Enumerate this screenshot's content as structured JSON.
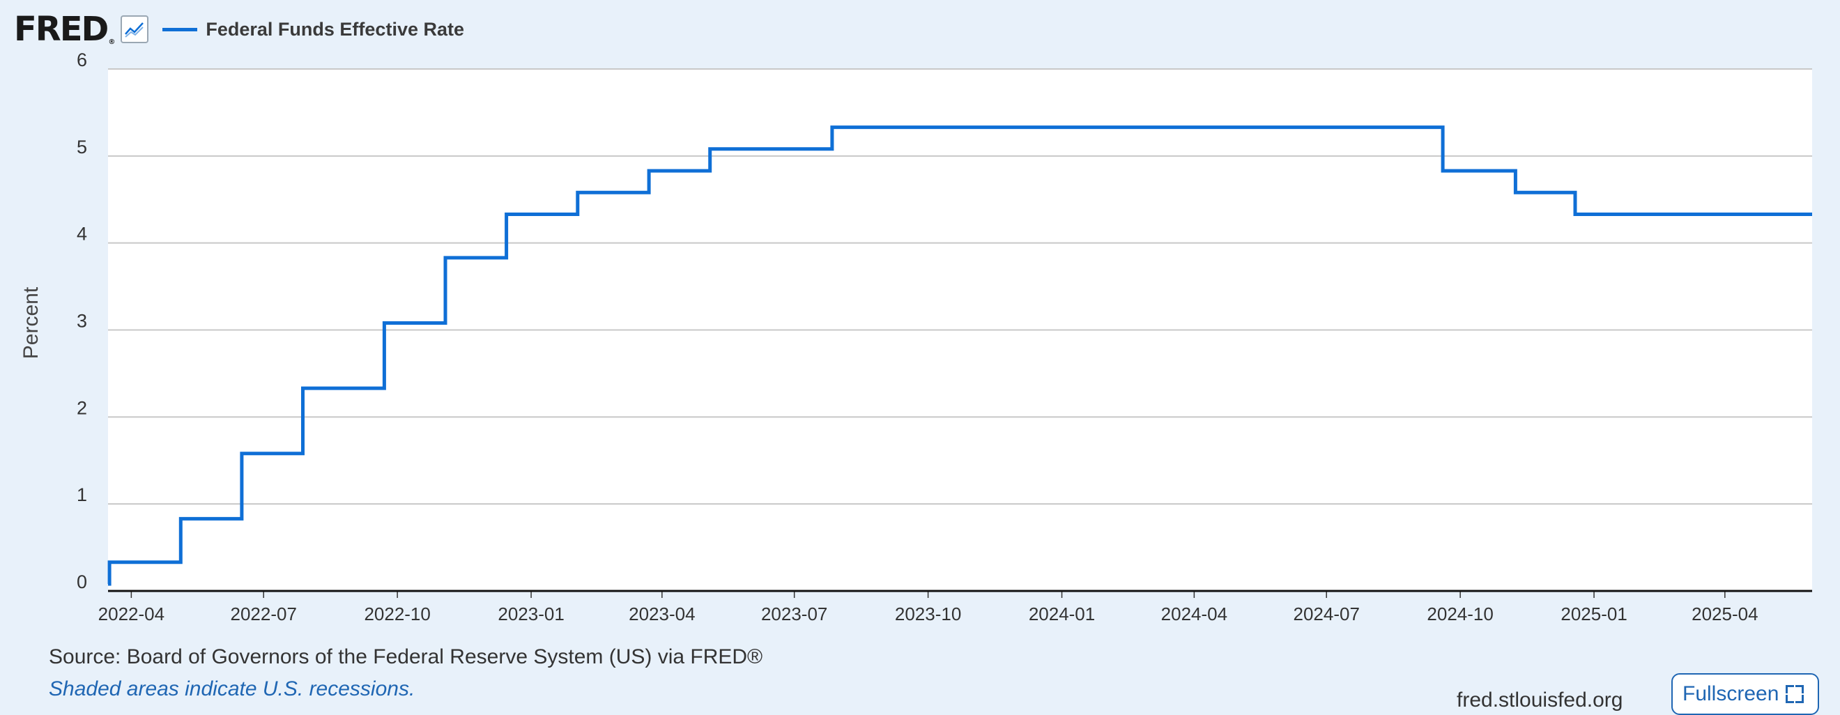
{
  "header": {
    "logo_text": "FRED",
    "logo_mark": "®",
    "graph_icon": "line-chart-icon"
  },
  "colors": {
    "series_line": "#0f6fd6",
    "background": "#e8f1fa",
    "plot_background": "#ffffff",
    "gridline": "#c8c8c8",
    "link": "#1f66b3"
  },
  "chart_data": {
    "type": "line",
    "title": "",
    "xlabel": "",
    "ylabel": "Percent",
    "ylim": [
      0,
      6
    ],
    "xlim": [
      "2022-03-16",
      "2025-05-31"
    ],
    "yticks": [
      "0",
      "1",
      "2",
      "3",
      "4",
      "5",
      "6"
    ],
    "xticks": [
      "2022-04",
      "2022-07",
      "2022-10",
      "2023-01",
      "2023-04",
      "2023-07",
      "2023-10",
      "2024-01",
      "2024-04",
      "2024-07",
      "2024-10",
      "2025-01",
      "2025-04"
    ],
    "grid": true,
    "legend_position": "top-left",
    "series": [
      {
        "name": "Federal Funds Effective Rate",
        "interpolation": "step",
        "points": [
          [
            "2022-03-16",
            0.08
          ],
          [
            "2022-03-17",
            0.33
          ],
          [
            "2022-05-05",
            0.83
          ],
          [
            "2022-06-16",
            1.58
          ],
          [
            "2022-07-28",
            2.33
          ],
          [
            "2022-09-22",
            3.08
          ],
          [
            "2022-11-03",
            3.83
          ],
          [
            "2022-12-15",
            4.33
          ],
          [
            "2023-02-02",
            4.58
          ],
          [
            "2023-03-23",
            4.83
          ],
          [
            "2023-05-04",
            5.08
          ],
          [
            "2023-07-27",
            5.33
          ],
          [
            "2024-09-19",
            4.83
          ],
          [
            "2024-11-08",
            4.58
          ],
          [
            "2024-12-19",
            4.33
          ],
          [
            "2025-05-31",
            4.33
          ]
        ]
      }
    ]
  },
  "footer": {
    "source": "Source: Board of Governors of the Federal Reserve System (US) via FRED®",
    "recession_note": "Shaded areas indicate U.S. recessions.",
    "site": "fred.stlouisfed.org",
    "fullscreen_label": "Fullscreen",
    "fullscreen_icon": "fullscreen-icon"
  }
}
